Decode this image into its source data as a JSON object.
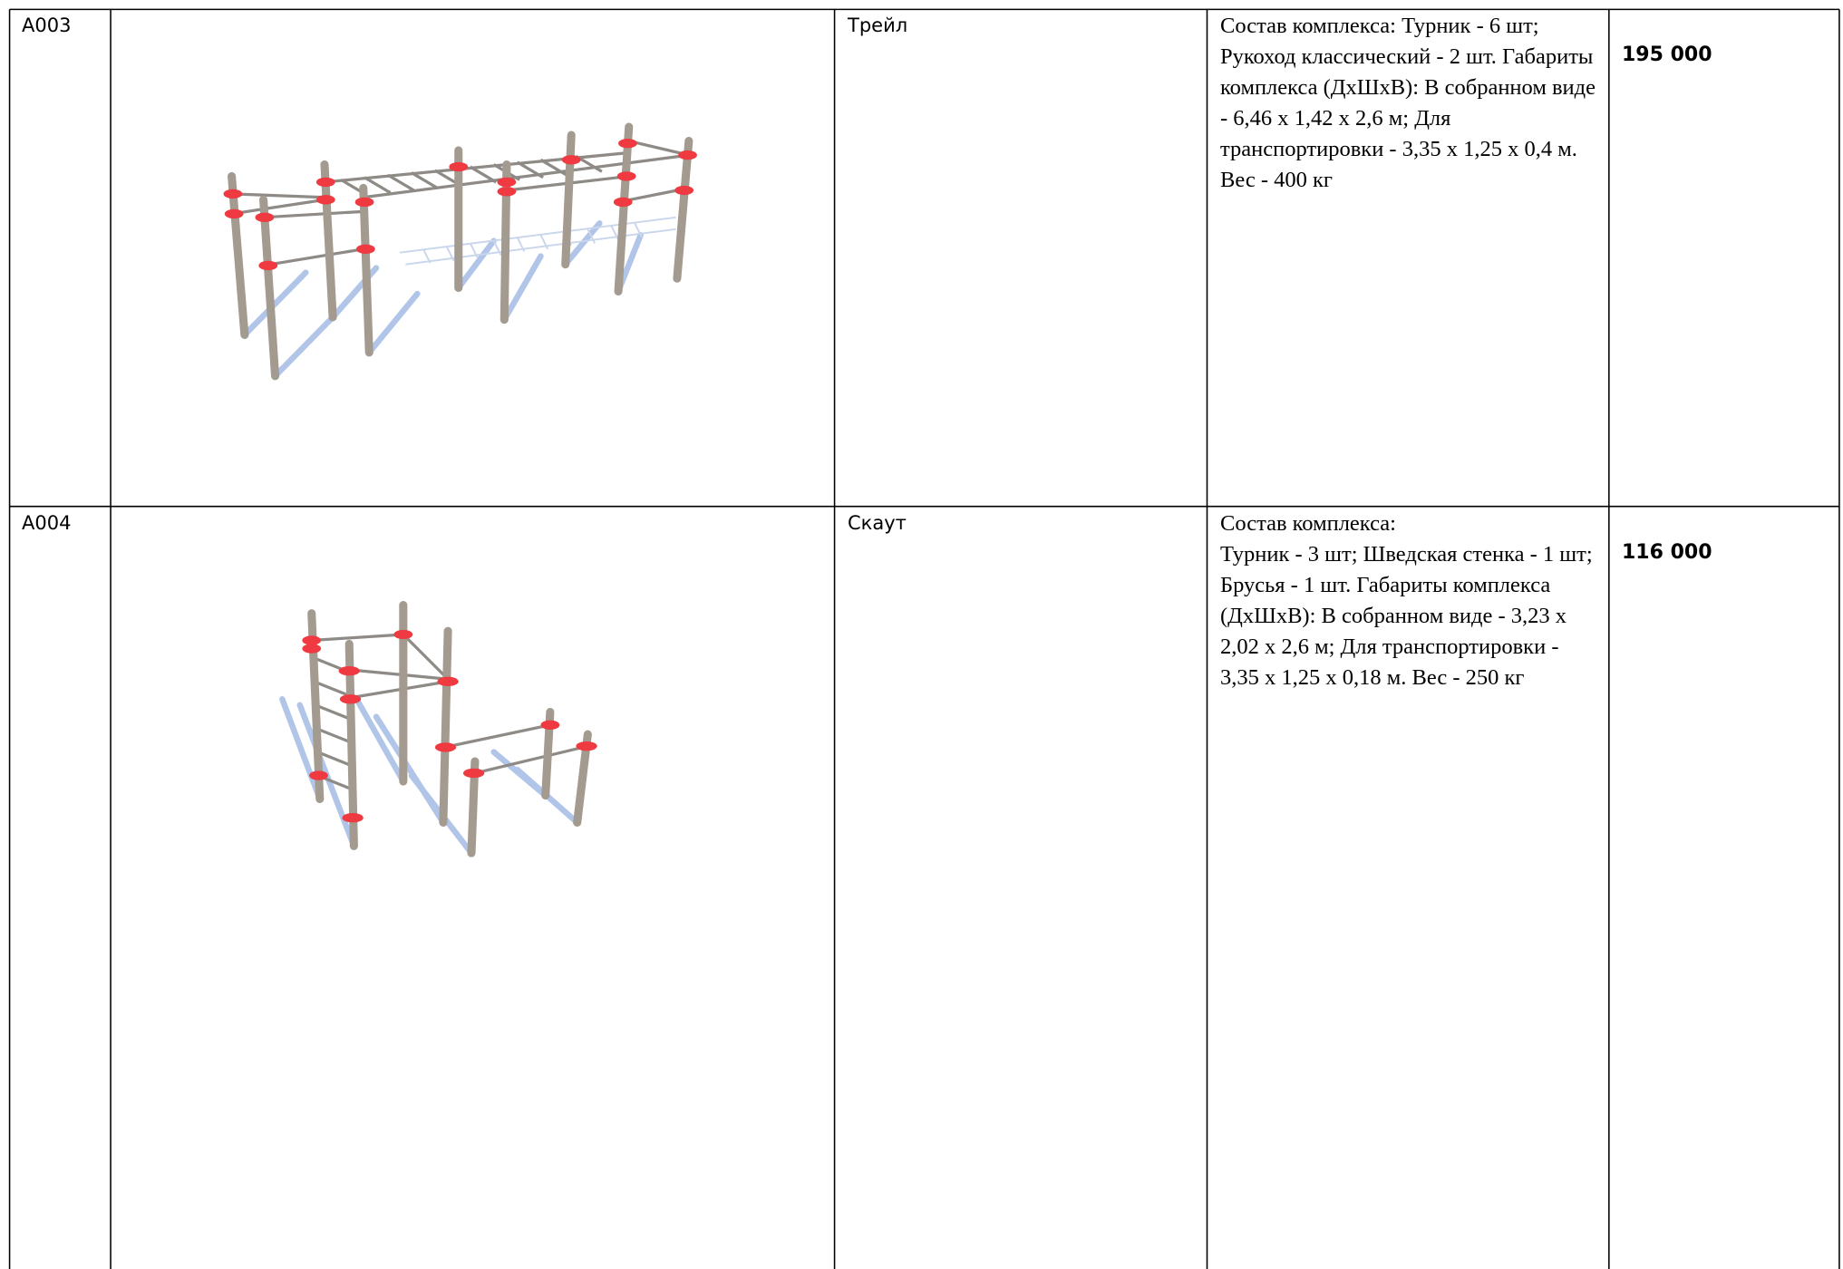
{
  "table": {
    "rows": [
      {
        "code": "A003",
        "name": "Трейл",
        "description": "Состав комплекса: Турник - 6 шт; Рукоход классический - 2 шт. Габариты комплекса (ДхШхВ): В собранном виде - 6,46 х 1,42 х 2,6 м; Для транспортировки - 3,35 х 1,25 х 0,4 м. Вес - 400 кг",
        "price": "195 000"
      },
      {
        "code": "A004",
        "name": "Скаут",
        "description": "Состав комплекса:\nТурник - 3 шт; Шведская стенка - 1 шт; Брусья - 1 шт. Габариты комплекса (ДхШхВ): В собранном виде - 3,23 х 2,02 х 2,6 м; Для транспортировки - 3,35 х 1,25 х 0,18 м. Вес - 250 кг",
        "price": "116 000"
      }
    ]
  }
}
